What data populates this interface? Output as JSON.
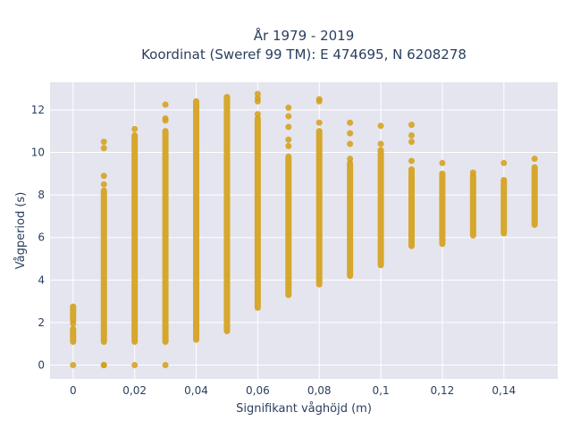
{
  "chart_data": {
    "type": "scatter",
    "title_line1": "År 1979 - 2019",
    "title_line2": "Koordinat (Sweref 99 TM): E 474695, N 6208278",
    "xlabel": "Signifikant våghöjd (m)",
    "ylabel": "Vågperiod (s)",
    "xlim": [
      -0.0075,
      0.1575
    ],
    "ylim": [
      -0.65,
      13.3
    ],
    "grid": true,
    "marker_color": "#D4A017",
    "plot_bg": "#E5E5EF",
    "xticks": [
      {
        "value": 0,
        "label": "0"
      },
      {
        "value": 0.02,
        "label": "0,02"
      },
      {
        "value": 0.04,
        "label": "0,04"
      },
      {
        "value": 0.06,
        "label": "0,06"
      },
      {
        "value": 0.08,
        "label": "0,08"
      },
      {
        "value": 0.1,
        "label": "0,1"
      },
      {
        "value": 0.12,
        "label": "0,12"
      },
      {
        "value": 0.14,
        "label": "0,14"
      }
    ],
    "yticks": [
      {
        "value": 0,
        "label": "0"
      },
      {
        "value": 2,
        "label": "2"
      },
      {
        "value": 4,
        "label": "4"
      },
      {
        "value": 6,
        "label": "6"
      },
      {
        "value": 8,
        "label": "8"
      },
      {
        "value": 10,
        "label": "10"
      },
      {
        "value": 12,
        "label": "12"
      }
    ],
    "columns": [
      {
        "x": 0.0,
        "segments": [
          [
            1.1,
            1.7
          ],
          [
            2.1,
            2.75
          ]
        ],
        "points": [
          0,
          1.95
        ]
      },
      {
        "x": 0.01,
        "segments": [
          [
            1.1,
            8.2
          ]
        ],
        "points": [
          0,
          0,
          8.5,
          8.9,
          10.2,
          10.5
        ]
      },
      {
        "x": 0.02,
        "segments": [
          [
            1.1,
            10.8
          ]
        ],
        "points": [
          0,
          11.1
        ]
      },
      {
        "x": 0.03,
        "segments": [
          [
            1.1,
            11.0
          ]
        ],
        "points": [
          0,
          11.5,
          11.6,
          12.25
        ]
      },
      {
        "x": 0.04,
        "segments": [
          [
            1.2,
            12.4
          ]
        ],
        "points": []
      },
      {
        "x": 0.05,
        "segments": [
          [
            1.6,
            12.6
          ]
        ],
        "points": []
      },
      {
        "x": 0.06,
        "segments": [
          [
            2.7,
            11.6
          ]
        ],
        "points": [
          11.8,
          12.4,
          12.55,
          12.75
        ]
      },
      {
        "x": 0.07,
        "segments": [
          [
            3.3,
            9.8
          ]
        ],
        "points": [
          10.3,
          10.6,
          11.2,
          11.7,
          12.1
        ]
      },
      {
        "x": 0.08,
        "segments": [
          [
            3.8,
            11.0
          ]
        ],
        "points": [
          11.4,
          12.4,
          12.5
        ]
      },
      {
        "x": 0.09,
        "segments": [
          [
            4.2,
            9.5
          ]
        ],
        "points": [
          9.7,
          10.4,
          10.9,
          11.4
        ]
      },
      {
        "x": 0.1,
        "segments": [
          [
            4.7,
            10.1
          ]
        ],
        "points": [
          10.4,
          11.25
        ]
      },
      {
        "x": 0.11,
        "segments": [
          [
            5.6,
            9.2
          ]
        ],
        "points": [
          9.6,
          10.5,
          10.8,
          11.3
        ]
      },
      {
        "x": 0.12,
        "segments": [
          [
            5.7,
            9.0
          ]
        ],
        "points": [
          9.5
        ]
      },
      {
        "x": 0.13,
        "segments": [
          [
            6.1,
            8.9
          ]
        ],
        "points": [
          9.05
        ]
      },
      {
        "x": 0.14,
        "segments": [
          [
            6.2,
            8.7
          ]
        ],
        "points": [
          9.5
        ]
      },
      {
        "x": 0.15,
        "segments": [
          [
            6.6,
            9.3
          ]
        ],
        "points": [
          9.7
        ]
      }
    ]
  }
}
